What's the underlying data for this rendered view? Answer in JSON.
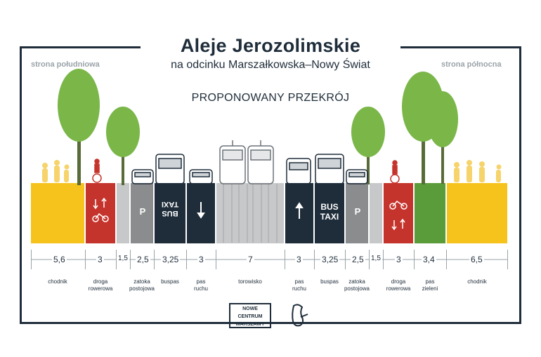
{
  "title": "Aleje Jerozolimskie",
  "subtitle": "na odcinku Marszałkowska–Nowy Świat",
  "heading": "PROPONOWANY PRZEKRÓJ",
  "side_left": "strona południowa",
  "side_right": "strona północna",
  "segments": [
    {
      "width": "5,6",
      "label": "chodnik",
      "color": "#f6c31d"
    },
    {
      "width": "3",
      "label": "droga\nrowerowa",
      "color": "#c5342c"
    },
    {
      "width": "1,5",
      "label": "",
      "color": "#c7c8c9"
    },
    {
      "width": "2,5",
      "label": "zatoka\npostojowa",
      "color": "#8a8c8e"
    },
    {
      "width": "3,25",
      "label": "buspas",
      "color": "#1f2d3a"
    },
    {
      "width": "3",
      "label": "pas\nruchu",
      "color": "#1f2d3a"
    },
    {
      "width": "7",
      "label": "torowisko",
      "color": "#c7c8c9"
    },
    {
      "width": "3",
      "label": "pas\nruchu",
      "color": "#1f2d3a"
    },
    {
      "width": "3,25",
      "label": "buspas",
      "color": "#1f2d3a"
    },
    {
      "width": "2,5",
      "label": "zatoka\npostojowa",
      "color": "#8a8c8e"
    },
    {
      "width": "1,5",
      "label": "",
      "color": "#c7c8c9"
    },
    {
      "width": "3",
      "label": "droga\nrowerowa",
      "color": "#c5342c"
    },
    {
      "width": "3,4",
      "label": "pas\nzieleni",
      "color": "#5a9c3a"
    },
    {
      "width": "6,5",
      "label": "chodnik",
      "color": "#f6c31d"
    }
  ],
  "signs": {
    "bus_taxi_left": "BUS TAXI",
    "bus_taxi_right_1": "BUS",
    "bus_taxi_right_2": "TAXI",
    "parking_left": "P",
    "parking_right": "P"
  },
  "logo": {
    "line1": "NOWE",
    "line2": "CENTRUM",
    "line3": "WARSZAWY"
  },
  "colors": {
    "navy": "#1f2d3a",
    "yellow": "#f6c31d",
    "red": "#c5342c",
    "green": "#5a9c3a",
    "grey": "#8a8c8e",
    "lightgrey": "#c7c8c9",
    "tree": "#7ab648"
  }
}
